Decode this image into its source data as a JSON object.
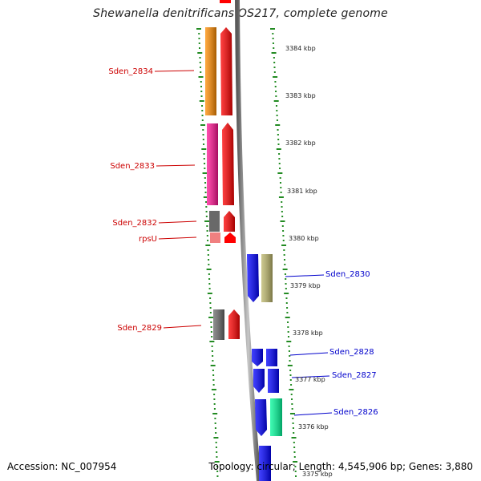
{
  "title": "Shewanella denitrificans OS217, complete genome",
  "footer": {
    "accession": "Accession: NC_007954",
    "summary": "Topology: circular; Length: 4,545,906 bp; Genes: 3,880"
  },
  "scale_labels": [
    "3384 kbp",
    "3383 kbp",
    "3382 kbp",
    "3381 kbp",
    "3380 kbp",
    "3379 kbp",
    "3378 kbp",
    "3377 kbp",
    "3376 kbp",
    "3375 kbp"
  ],
  "genes_forward": [
    {
      "label": "Sden_2834",
      "color": "#ff0000",
      "cog_color": "#ff8c00"
    },
    {
      "label": "Sden_2833",
      "color": "#ff0000",
      "cog_color": "#ff1493"
    },
    {
      "label": "Sden_2832",
      "color": "#ff0000",
      "cog_color": "#696969"
    },
    {
      "label": "rpsU",
      "color": "#ff0000",
      "cog_color": "#f08080"
    },
    {
      "label": "Sden_2829",
      "color": "#ff0000",
      "cog_color": "#696969"
    }
  ],
  "genes_reverse": [
    {
      "label": "Sden_2830",
      "color": "#0000ff",
      "cog_color": "#bdb76b"
    },
    {
      "label": "Sden_2828",
      "color": "#0000ff",
      "cog_color": "#0000ff"
    },
    {
      "label": "Sden_2827",
      "color": "#0000ff",
      "cog_color": "#0000ff"
    },
    {
      "label": "Sden_2826",
      "color": "#0000ff",
      "cog_color": "#00fa9a"
    }
  ],
  "colors": {
    "forward_label": "#cc0000",
    "reverse_label": "#0000cc",
    "tick": "#228b22",
    "backbone": "#808080"
  }
}
